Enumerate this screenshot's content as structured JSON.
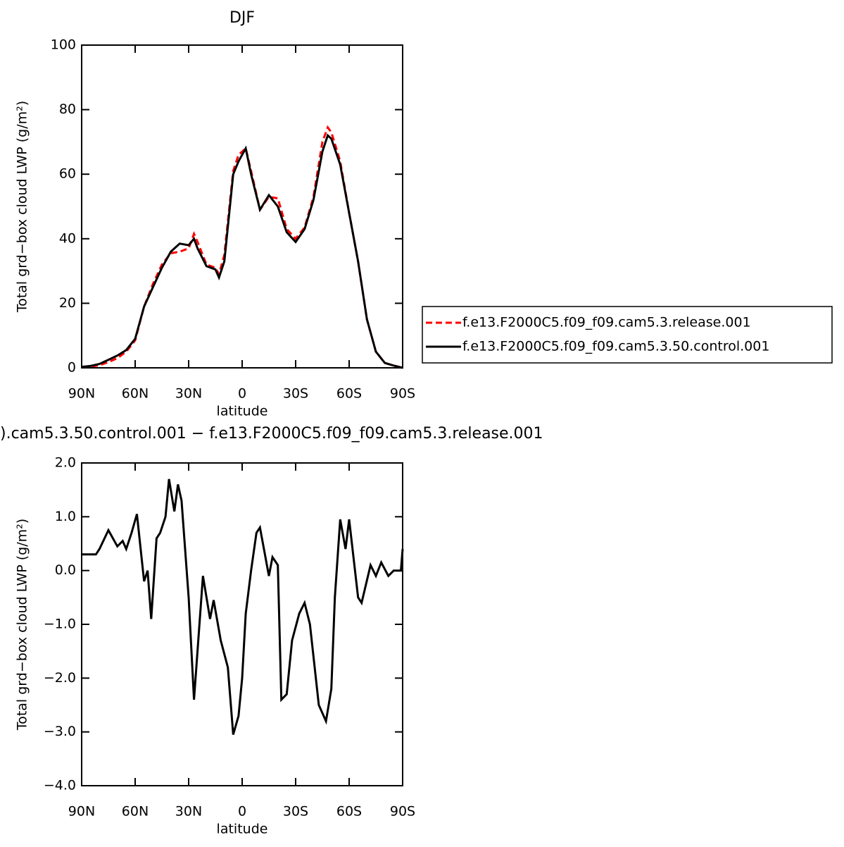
{
  "chart_data": [
    {
      "type": "line",
      "title": "DJF",
      "xlabel": "latitude",
      "ylabel": "Total grd−box cloud LWP (g/m²)",
      "x": [
        90,
        85,
        80,
        75,
        70,
        65,
        60,
        55,
        50,
        45,
        40,
        35,
        30,
        27,
        25,
        20,
        15,
        13,
        10,
        5,
        2,
        0,
        -2,
        -5,
        -10,
        -15,
        -20,
        -25,
        -30,
        -35,
        -40,
        -45,
        -48,
        -50,
        -55,
        -60,
        -65,
        -70,
        -75,
        -80,
        -85,
        -90
      ],
      "series": [
        {
          "name": "f.e13.F2000C5.f09_f09.cam5.3.release.001",
          "color": "#ff0000",
          "line_style": "dashed",
          "values": [
            0.3,
            0.4,
            0.8,
            1.8,
            3,
            5,
            8.5,
            19,
            26,
            32,
            35.5,
            36,
            37,
            41.5,
            39,
            32,
            31,
            29,
            35,
            61,
            66,
            67,
            68,
            61,
            49,
            53,
            52.5,
            43,
            40,
            43.5,
            53,
            70,
            74.5,
            73,
            64,
            48,
            33,
            15,
            5,
            1.5,
            0.7,
            0
          ]
        },
        {
          "name": "f.e13.F2000C5.f09_f09.cam5.3.50.control.001",
          "color": "#000000",
          "line_style": "solid",
          "values": [
            0.3,
            0.6,
            1.2,
            2.5,
            3.8,
            5.5,
            9,
            19,
            25,
            31,
            36,
            38.5,
            38,
            40,
            37,
            31.5,
            30.5,
            28,
            33,
            60,
            64,
            66,
            68,
            60,
            49,
            53.5,
            50,
            42,
            39,
            43,
            52,
            67,
            72,
            71,
            63,
            48,
            33,
            15,
            5,
            1.5,
            0.7,
            0
          ]
        }
      ],
      "xlim": [
        90,
        -90
      ],
      "xticks": [
        {
          "value": 90,
          "label": "90N"
        },
        {
          "value": 60,
          "label": "60N"
        },
        {
          "value": 30,
          "label": "30N"
        },
        0,
        {
          "value": -30,
          "label": "30S"
        },
        {
          "value": -60,
          "label": "60S"
        },
        {
          "value": -90,
          "label": "90S"
        }
      ],
      "ylim": [
        0,
        100
      ],
      "yticks": [
        0,
        20,
        40,
        60,
        80,
        100
      ],
      "legend": "right"
    },
    {
      "type": "line",
      "title": ").cam5.3.50.control.001 − f.e13.F2000C5.f09_f09.cam5.3.release.001",
      "xlabel": "latitude",
      "ylabel": "Total grd−box cloud LWP (g/m²)",
      "x": [
        90,
        85,
        82,
        80,
        75,
        70,
        67,
        65,
        62,
        59,
        55,
        53,
        51,
        48,
        46,
        43,
        41,
        38,
        36,
        34,
        30,
        27,
        22,
        18,
        16,
        12,
        8,
        5,
        2,
        0,
        -2,
        -5,
        -8,
        -10,
        -15,
        -17,
        -20,
        -22,
        -25,
        -28,
        -32,
        -35,
        -38,
        -43,
        -47,
        -50,
        -52,
        -55,
        -58,
        -60,
        -65,
        -67,
        -72,
        -75,
        -78,
        -82,
        -85,
        -89,
        -90
      ],
      "values": [
        0.3,
        0.3,
        0.3,
        0.4,
        0.75,
        0.45,
        0.55,
        0.4,
        0.7,
        1.05,
        -0.2,
        0,
        -0.9,
        0.6,
        0.7,
        1.0,
        1.7,
        1.1,
        1.6,
        1.3,
        -0.5,
        -2.4,
        -0.1,
        -0.9,
        -0.55,
        -1.3,
        -1.8,
        -3.05,
        -2.7,
        -2.0,
        -0.8,
        0.0,
        0.7,
        0.8,
        -0.1,
        0.25,
        0.1,
        -2.4,
        -2.3,
        -1.3,
        -0.8,
        -0.6,
        -1.0,
        -2.5,
        -2.8,
        -2.2,
        -0.5,
        0.95,
        0.4,
        0.95,
        -0.5,
        -0.6,
        0.1,
        -0.1,
        0.15,
        -0.1,
        0.0,
        0.0,
        0.4
      ],
      "color": "#000000",
      "xlim": [
        90,
        -90
      ],
      "xticks": [
        {
          "value": 90,
          "label": "90N"
        },
        {
          "value": 60,
          "label": "60N"
        },
        {
          "value": 30,
          "label": "30N"
        },
        0,
        {
          "value": -30,
          "label": "30S"
        },
        {
          "value": -60,
          "label": "60S"
        },
        {
          "value": -90,
          "label": "90S"
        }
      ],
      "ylim": [
        -4,
        2
      ],
      "yticks": [
        {
          "value": -4,
          "label": "−4.0"
        },
        {
          "value": -3,
          "label": "−3.0"
        },
        {
          "value": -2,
          "label": "−2.0"
        },
        {
          "value": -1,
          "label": "−1.0"
        },
        {
          "value": 0,
          "label": "0.0"
        },
        {
          "value": 1,
          "label": "1.0"
        },
        {
          "value": 2,
          "label": "2.0"
        }
      ]
    }
  ]
}
